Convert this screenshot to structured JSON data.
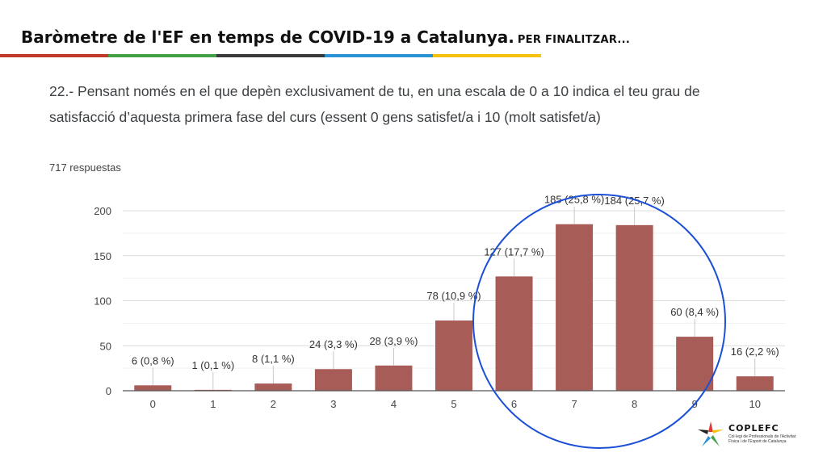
{
  "slide": {
    "title": "Baròmetre de l'EF en temps de COVID-19 a Catalunya.",
    "subtitle": "PER FINALITZAR...",
    "question": "22.- Pensant només en el que depèn exclusivament de tu, en una escala de 0 a 10 indica el teu grau de satisfacció d’aquesta primera fase del curs (essent 0 gens satisfet/a i 10 (molt satisfet/a)",
    "responses": "717 respuestas",
    "stripe_colors": [
      "#c0392b",
      "#43a047",
      "#3a3a3a",
      "#2a93d5",
      "#f4c20d"
    ],
    "highlight_color": "#1a4fd6"
  },
  "logo": {
    "name": "COPLEFC",
    "tagline": "Col·legi de Professionals de l'Activitat Física i de l'Esport de Catalunya"
  },
  "chart_data": {
    "type": "bar",
    "categories": [
      "0",
      "1",
      "2",
      "3",
      "4",
      "5",
      "6",
      "7",
      "8",
      "9",
      "10"
    ],
    "values": [
      6,
      1,
      8,
      24,
      28,
      78,
      127,
      185,
      184,
      60,
      16
    ],
    "data_labels": [
      "6 (0,8 %)",
      "1 (0,1 %)",
      "8 (1,1 %)",
      "24 (3,3 %)",
      "28 (3,9 %)",
      "78 (10,9 %)",
      "127 (17,7 %)",
      "185 (25,8 %)",
      "184 (25,7 %)",
      "60 (8,4 %)",
      "16 (2,2 %)"
    ],
    "yticks": [
      "0",
      "50",
      "100",
      "150",
      "200"
    ],
    "ylim": [
      0,
      200
    ],
    "bar_color": "#a85c57",
    "grid": true
  }
}
